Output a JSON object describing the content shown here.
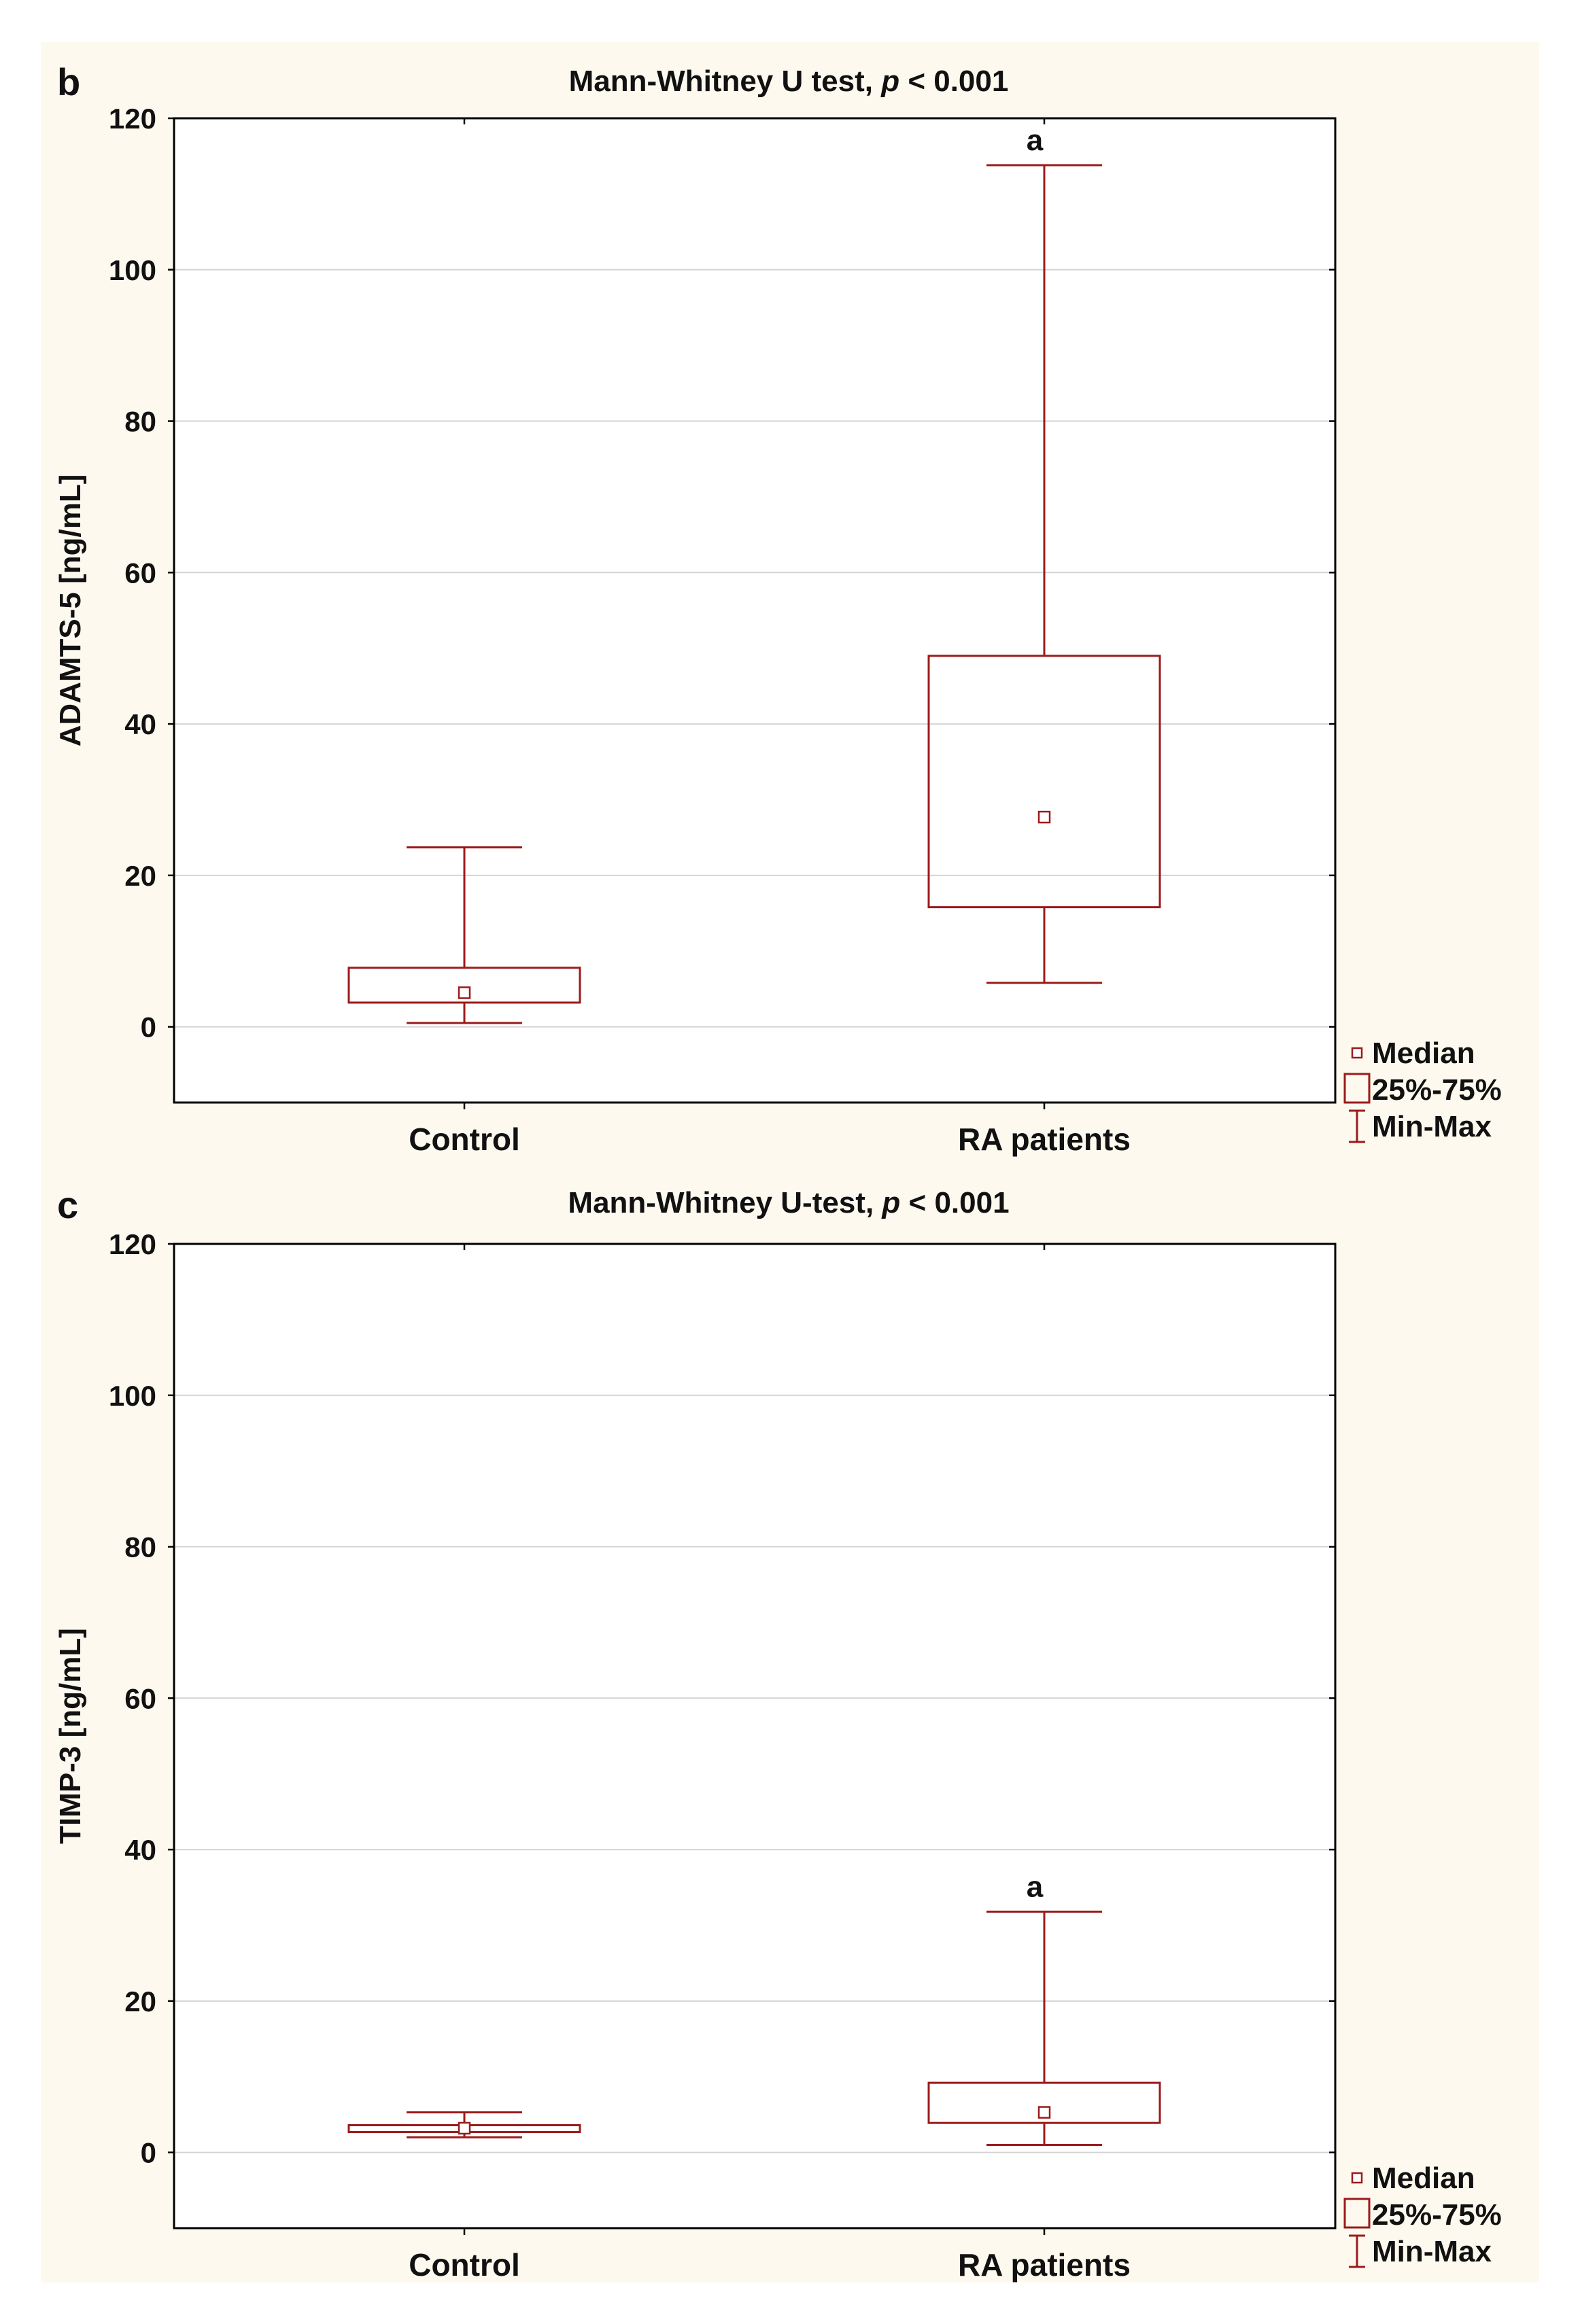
{
  "chart_data": [
    {
      "panel_label": "b",
      "type": "box",
      "title_text": "Mann-Whitney U test, ",
      "title_p": "p",
      "title_suffix": " < 0.001",
      "ylabel": "ADAMTS-5 [ng/mL]",
      "ylim": [
        -10,
        120
      ],
      "yticks": [
        0,
        20,
        40,
        60,
        80,
        100,
        120
      ],
      "categories": [
        "Control",
        "RA patients"
      ],
      "boxes": [
        {
          "category": "Control",
          "min": 0.5,
          "q1": 3.2,
          "median": 4.5,
          "q3": 7.8,
          "max": 23.7,
          "annotation": ""
        },
        {
          "category": "RA patients",
          "min": 5.8,
          "q1": 15.8,
          "median": 27.7,
          "q3": 49.0,
          "max": 113.8,
          "annotation": "a"
        }
      ],
      "legend": {
        "median": "Median",
        "box": "25%-75%",
        "whisker": "Min-Max"
      }
    },
    {
      "panel_label": "c",
      "type": "box",
      "title_text": "Mann-Whitney U-test, ",
      "title_p": "p",
      "title_suffix": " < 0.001",
      "ylabel": "TIMP-3 [ng/mL]",
      "ylim": [
        -10,
        120
      ],
      "yticks": [
        0,
        20,
        40,
        60,
        80,
        100,
        120
      ],
      "categories": [
        "Control",
        "RA patients"
      ],
      "boxes": [
        {
          "category": "Control",
          "min": 2.0,
          "q1": 2.7,
          "median": 3.2,
          "q3": 3.6,
          "max": 5.3,
          "annotation": ""
        },
        {
          "category": "RA patients",
          "min": 1.0,
          "q1": 3.9,
          "median": 5.3,
          "q3": 9.2,
          "max": 31.8,
          "annotation": "a"
        }
      ],
      "legend": {
        "median": "Median",
        "box": "25%-75%",
        "whisker": "Min-Max"
      }
    }
  ],
  "colors": {
    "background": "#fdf9ef",
    "plot": "#ffffff",
    "series": "#9b1b1b",
    "grid": "#d4d4d4",
    "axis": "#000000"
  }
}
